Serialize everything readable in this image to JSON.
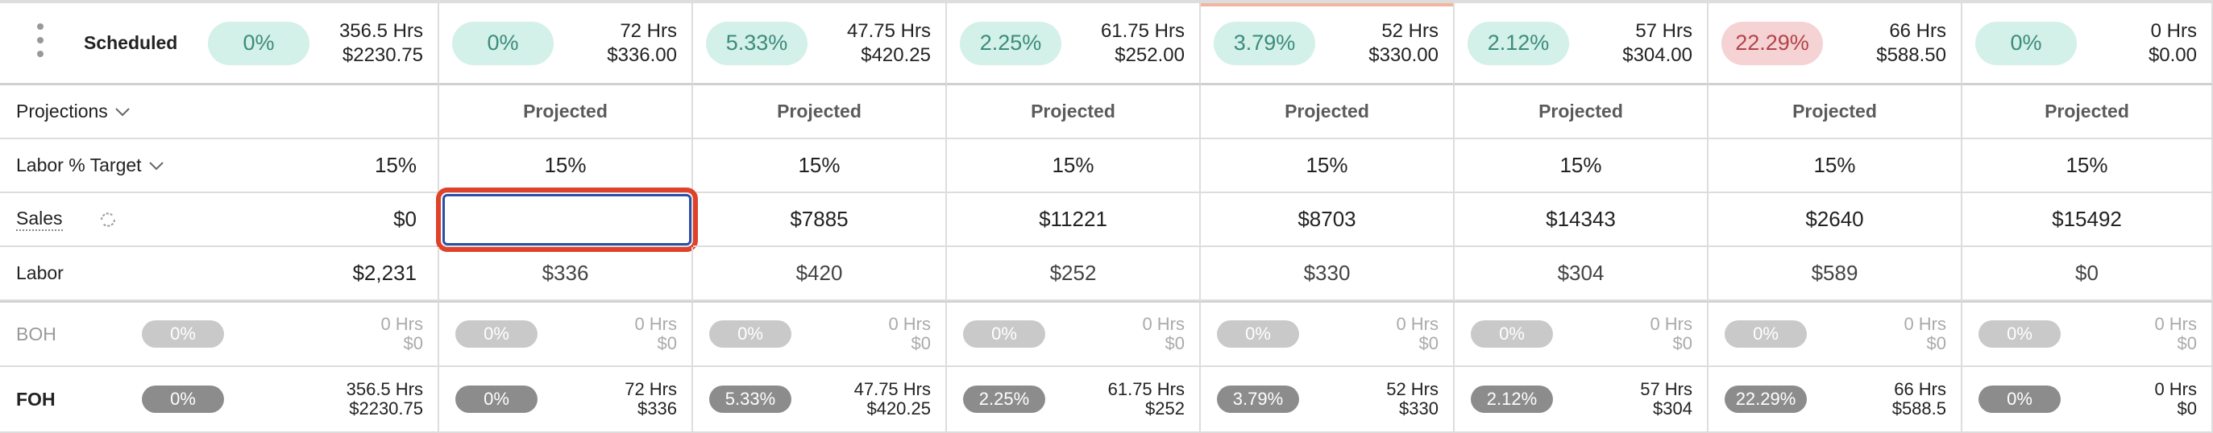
{
  "scheduled": {
    "label": "Scheduled",
    "summary": {
      "percent": "0%",
      "hours": "356.5 Hrs",
      "cost": "$2230.75",
      "color": "#d3f0e9",
      "text_color": "#3b8c7c"
    },
    "days": [
      {
        "percent": "0%",
        "hours": "72 Hrs",
        "cost": "$336.00",
        "color": "#d3f0e9",
        "text_color": "#3b8c7c"
      },
      {
        "percent": "5.33%",
        "hours": "47.75 Hrs",
        "cost": "$420.25",
        "color": "#d3f0e9",
        "text_color": "#3b8c7c"
      },
      {
        "percent": "2.25%",
        "hours": "61.75 Hrs",
        "cost": "$252.00",
        "color": "#d3f0e9",
        "text_color": "#3b8c7c"
      },
      {
        "percent": "3.79%",
        "hours": "52 Hrs",
        "cost": "$330.00",
        "color": "#d3f0e9",
        "text_color": "#3b8c7c"
      },
      {
        "percent": "2.12%",
        "hours": "57 Hrs",
        "cost": "$304.00",
        "color": "#d3f0e9",
        "text_color": "#3b8c7c"
      },
      {
        "percent": "22.29%",
        "hours": "66 Hrs",
        "cost": "$588.50",
        "color": "#f5d2d3",
        "text_color": "#b3434a"
      },
      {
        "percent": "0%",
        "hours": "0 Hrs",
        "cost": "$0.00",
        "color": "#d3f0e9",
        "text_color": "#3b8c7c"
      }
    ]
  },
  "projections": {
    "label": "Projections",
    "cells": [
      "Projected",
      "Projected",
      "Projected",
      "Projected",
      "Projected",
      "Projected",
      "Projected"
    ]
  },
  "labor_target": {
    "label": "Labor % Target",
    "summary": "15%",
    "cells": [
      "15%",
      "15%",
      "15%",
      "15%",
      "15%",
      "15%",
      "15%"
    ]
  },
  "sales": {
    "label": "Sales",
    "summary": "$0",
    "cells": [
      null,
      "$7885",
      "$11221",
      "$8703",
      "$14343",
      "$2640",
      "$15492"
    ]
  },
  "labor": {
    "label": "Labor",
    "summary": "$2,231",
    "cells": [
      "$336",
      "$420",
      "$252",
      "$330",
      "$304",
      "$589",
      "$0"
    ]
  },
  "staff": [
    {
      "label": "BOH",
      "color": "#c9c9c9",
      "summary": {
        "percent": "0%",
        "hours": "0 Hrs",
        "cost": "$0"
      },
      "days": [
        {
          "percent": "0%",
          "hours": "0 Hrs",
          "cost": "$0"
        },
        {
          "percent": "0%",
          "hours": "0 Hrs",
          "cost": "$0"
        },
        {
          "percent": "0%",
          "hours": "0 Hrs",
          "cost": "$0"
        },
        {
          "percent": "0%",
          "hours": "0 Hrs",
          "cost": "$0"
        },
        {
          "percent": "0%",
          "hours": "0 Hrs",
          "cost": "$0"
        },
        {
          "percent": "0%",
          "hours": "0 Hrs",
          "cost": "$0"
        },
        {
          "percent": "0%",
          "hours": "0 Hrs",
          "cost": "$0"
        }
      ]
    },
    {
      "label": "FOH",
      "color": "#8c8c8c",
      "summary": {
        "percent": "0%",
        "hours": "356.5 Hrs",
        "cost": "$2230.75"
      },
      "days": [
        {
          "percent": "0%",
          "hours": "72 Hrs",
          "cost": "$336"
        },
        {
          "percent": "5.33%",
          "hours": "47.75 Hrs",
          "cost": "$420.25"
        },
        {
          "percent": "2.25%",
          "hours": "61.75 Hrs",
          "cost": "$252"
        },
        {
          "percent": "3.79%",
          "hours": "52 Hrs",
          "cost": "$330"
        },
        {
          "percent": "2.12%",
          "hours": "57 Hrs",
          "cost": "$304"
        },
        {
          "percent": "22.29%",
          "hours": "66 Hrs",
          "cost": "$588.5"
        },
        {
          "percent": "0%",
          "hours": "0 Hrs",
          "cost": "$0"
        }
      ]
    }
  ]
}
